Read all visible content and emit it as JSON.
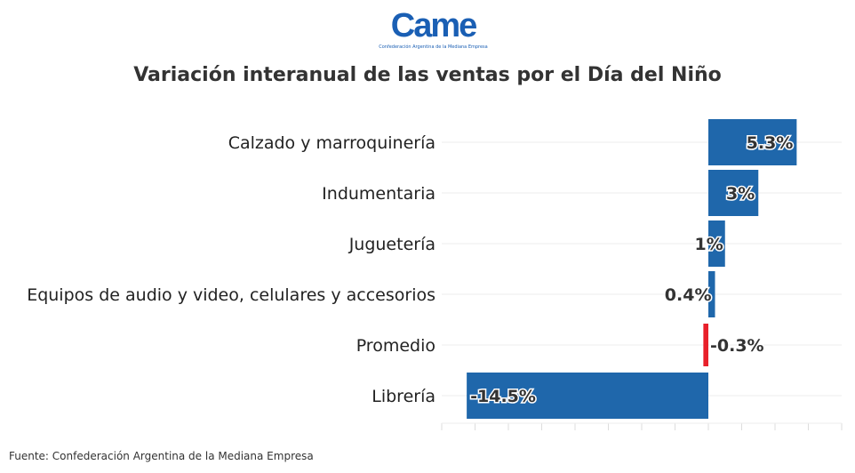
{
  "logo": {
    "text": "Came",
    "subtitle": "Confederación Argentina de la Mediana Empresa"
  },
  "chart_data": {
    "type": "bar",
    "orientation": "horizontal",
    "title": "Variación interanual de las ventas por el Día del Niño",
    "categories": [
      "Calzado y marroquinería",
      "Indumentaria",
      "Juguetería",
      "Equipos de audio y video, celulares y accesorios",
      "Promedio",
      "Librería"
    ],
    "values": [
      5.3,
      3,
      1,
      0.4,
      -0.3,
      -14.5
    ],
    "labels": [
      "5.3%",
      "3%",
      "1%",
      "0.4%",
      "-0.3%",
      "-14.5%"
    ],
    "colors": [
      "#1f67ab",
      "#1f67ab",
      "#1f67ab",
      "#1f67ab",
      "#e8202a",
      "#1f67ab"
    ],
    "xlim": [
      -16,
      8
    ],
    "grid": true
  },
  "source": "Fuente: Confederación Argentina de la Mediana Empresa"
}
